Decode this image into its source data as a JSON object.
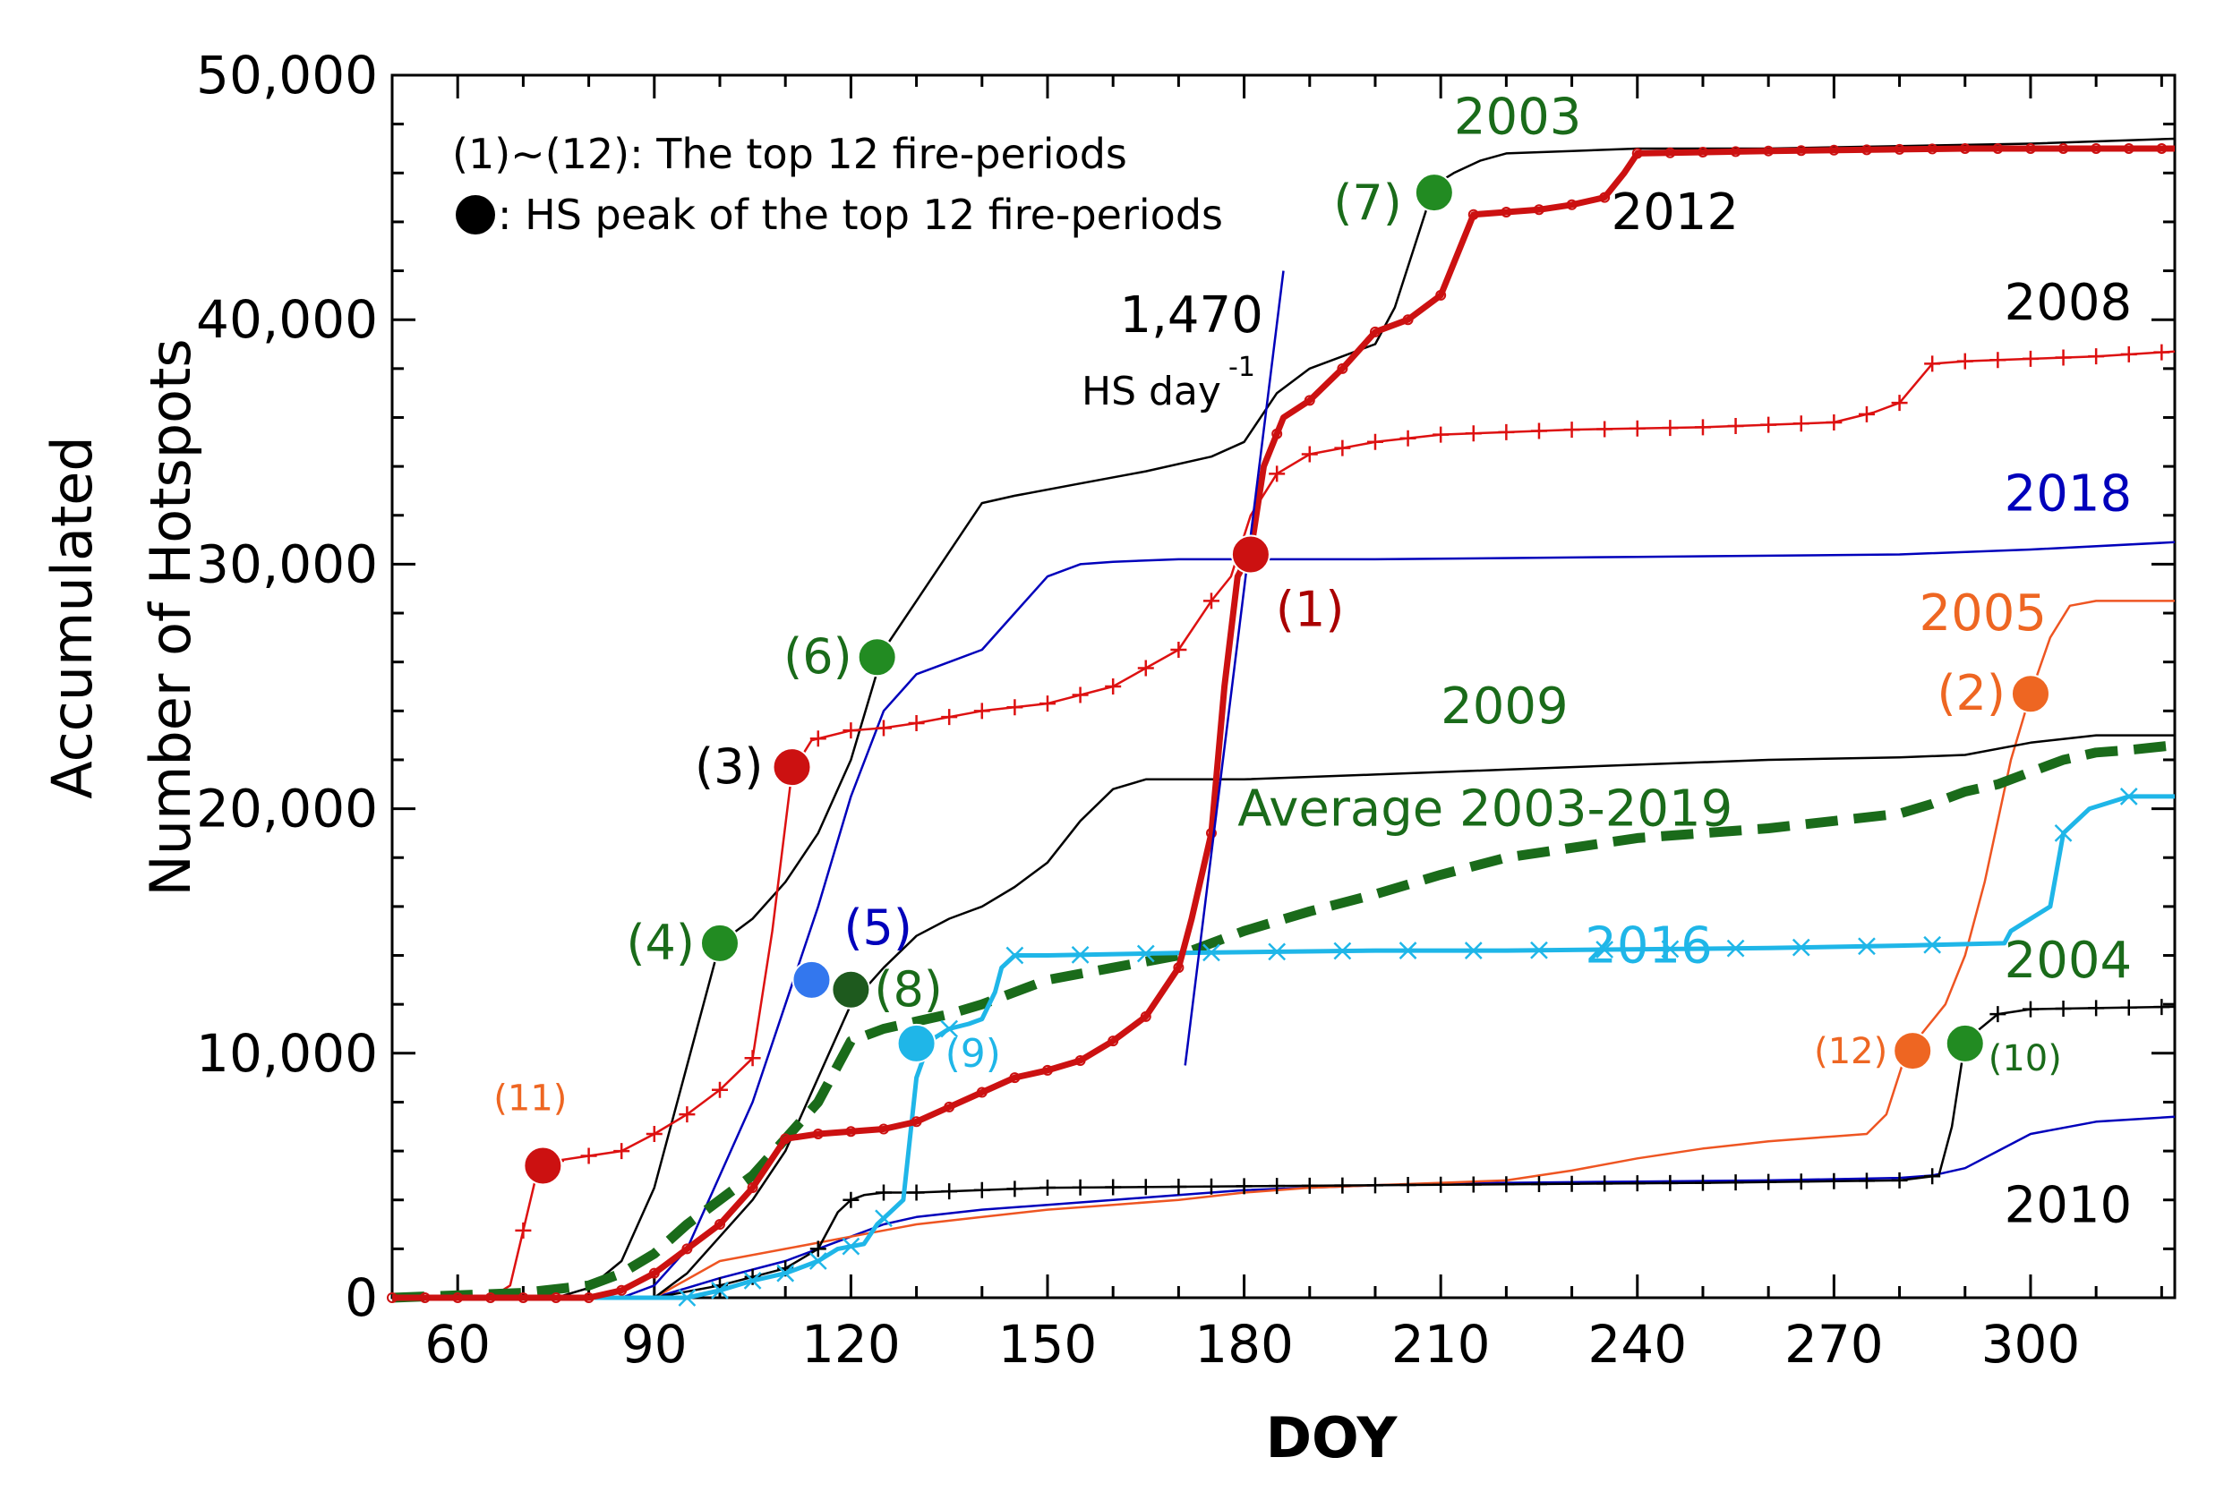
{
  "chart_data": {
    "type": "line",
    "xlabel": "DOY",
    "ylabel_line1": "Accumulated",
    "ylabel_line2": "Number of Hotspots",
    "xlim": [
      50,
      322
    ],
    "ylim": [
      0,
      50000
    ],
    "xticks": [
      60,
      90,
      120,
      150,
      180,
      210,
      240,
      270,
      300
    ],
    "xtick_labels": [
      "60",
      "90",
      "120",
      "150",
      "180",
      "210",
      "240",
      "270",
      "300"
    ],
    "yticks": [
      0,
      10000,
      20000,
      30000,
      40000,
      50000
    ],
    "ytick_labels": [
      "0",
      "10,000",
      "20,000",
      "30,000",
      "40,000",
      "50,000"
    ],
    "legend": {
      "line1": "(1)~(12): The top 12 fire-periods",
      "line2": ": HS peak of the top 12 fire-periods"
    },
    "series": [
      {
        "name": "2003",
        "color": "#000000",
        "width": 2.5,
        "marker": "none",
        "x": [
          50,
          75,
          80,
          85,
          90,
          95,
          100,
          105,
          110,
          115,
          120,
          125,
          130,
          135,
          140,
          145,
          155,
          165,
          175,
          180,
          185,
          190,
          200,
          203,
          206,
          209,
          212,
          216,
          220,
          230,
          240,
          260,
          280,
          300,
          322
        ],
        "y": [
          0,
          0,
          400,
          1500,
          4500,
          9500,
          14500,
          15500,
          17000,
          19000,
          22000,
          26500,
          28500,
          30500,
          32500,
          32800,
          33300,
          33800,
          34400,
          35000,
          37000,
          38000,
          39000,
          40500,
          43000,
          45500,
          46000,
          46500,
          46800,
          46900,
          47000,
          47000,
          47100,
          47200,
          47400
        ]
      },
      {
        "name": "2012",
        "color": "#cc1111",
        "width": 7,
        "marker": "circle",
        "x": [
          50,
          80,
          85,
          90,
          95,
          100,
          105,
          110,
          115,
          120,
          125,
          130,
          135,
          140,
          145,
          150,
          155,
          160,
          165,
          170,
          172,
          175,
          177,
          179,
          181,
          183,
          186,
          190,
          195,
          200,
          205,
          210,
          215,
          220,
          225,
          230,
          235,
          238,
          240,
          260,
          290,
          322
        ],
        "y": [
          0,
          0,
          300,
          1000,
          2000,
          3000,
          4500,
          6500,
          6700,
          6800,
          6900,
          7200,
          7800,
          8400,
          9000,
          9300,
          9700,
          10500,
          11500,
          13500,
          15500,
          19000,
          25000,
          29500,
          30500,
          34000,
          36000,
          36700,
          38000,
          39500,
          40000,
          41000,
          44300,
          44400,
          44500,
          44700,
          45000,
          46000,
          46800,
          46900,
          47000,
          47000
        ],
        "markers_x": [
          50,
          55,
          60,
          65,
          70,
          75,
          80,
          85,
          90,
          95,
          100,
          105,
          110,
          115,
          120,
          125,
          130,
          135,
          140,
          145,
          150,
          155,
          160,
          165,
          170,
          175,
          180,
          185,
          190,
          195,
          200,
          205,
          210,
          215,
          220,
          225,
          230,
          235,
          240,
          245,
          250,
          255,
          260,
          265,
          270,
          275,
          280,
          285,
          290,
          295,
          300,
          305,
          310,
          315,
          320
        ]
      },
      {
        "name": "2008",
        "color": "#dd1111",
        "width": 2.5,
        "marker": "plus",
        "x": [
          50,
          65,
          68,
          72,
          75,
          80,
          85,
          90,
          95,
          100,
          105,
          108,
          111,
          114,
          120,
          125,
          130,
          140,
          150,
          160,
          170,
          175,
          178,
          181,
          185,
          190,
          200,
          210,
          220,
          230,
          250,
          270,
          276,
          280,
          285,
          290,
          300,
          310,
          322
        ],
        "y": [
          0,
          0,
          500,
          5000,
          5600,
          5800,
          6000,
          6700,
          7500,
          8500,
          9800,
          15000,
          21500,
          22800,
          23200,
          23300,
          23500,
          24000,
          24300,
          25000,
          26500,
          28500,
          29500,
          32000,
          33700,
          34500,
          35000,
          35300,
          35400,
          35500,
          35600,
          35800,
          36200,
          36600,
          38200,
          38300,
          38400,
          38500,
          38700
        ],
        "markers_x": [
          70,
          75,
          80,
          85,
          90,
          95,
          100,
          105,
          115,
          120,
          125,
          130,
          135,
          140,
          145,
          150,
          155,
          160,
          165,
          170,
          175,
          185,
          190,
          195,
          200,
          205,
          210,
          215,
          220,
          225,
          230,
          235,
          240,
          245,
          250,
          255,
          260,
          265,
          270,
          275,
          280,
          285,
          290,
          295,
          300,
          305,
          310,
          315,
          320
        ]
      },
      {
        "name": "2018",
        "color": "#0000bb",
        "width": 2.5,
        "marker": "none",
        "x": [
          50,
          85,
          90,
          95,
          100,
          105,
          110,
          115,
          120,
          125,
          130,
          135,
          140,
          145,
          150,
          155,
          160,
          170,
          181,
          185,
          200,
          240,
          280,
          300,
          322
        ],
        "y": [
          0,
          0,
          500,
          2000,
          5000,
          8000,
          12000,
          16000,
          20500,
          24000,
          25500,
          26000,
          26500,
          28000,
          29500,
          30000,
          30100,
          30200,
          30200,
          30200,
          30200,
          30300,
          30400,
          30600,
          30900
        ]
      },
      {
        "name": "2005",
        "color": "#ee5522",
        "width": 2.5,
        "marker": "none",
        "x": [
          50,
          90,
          100,
          110,
          120,
          130,
          140,
          150,
          160,
          170,
          180,
          190,
          200,
          210,
          220,
          230,
          240,
          250,
          260,
          270,
          275,
          278,
          281,
          284,
          287,
          290,
          293,
          297,
          300,
          303,
          306,
          310,
          322
        ],
        "y": [
          0,
          0,
          1500,
          2000,
          2500,
          3000,
          3300,
          3600,
          3800,
          4000,
          4300,
          4500,
          4600,
          4700,
          4800,
          5200,
          5700,
          6100,
          6400,
          6600,
          6700,
          7500,
          10000,
          11000,
          12000,
          14000,
          17000,
          22000,
          24700,
          27000,
          28300,
          28500,
          28500
        ]
      },
      {
        "name": "2009",
        "color": "#000000",
        "width": 2.5,
        "marker": "none",
        "x": [
          50,
          90,
          95,
          100,
          105,
          110,
          115,
          120,
          125,
          130,
          135,
          140,
          145,
          150,
          155,
          160,
          165,
          180,
          200,
          220,
          240,
          260,
          280,
          290,
          300,
          310,
          322
        ],
        "y": [
          0,
          0,
          1000,
          2500,
          4000,
          6000,
          9000,
          12000,
          13500,
          14800,
          15500,
          16000,
          16800,
          17800,
          19500,
          20800,
          21200,
          21200,
          21400,
          21600,
          21800,
          22000,
          22100,
          22200,
          22700,
          23000,
          23000
        ]
      },
      {
        "name": "Average 2003-2019",
        "color": "#1a6b1a",
        "width": 11,
        "marker": "none",
        "dashed": true,
        "x": [
          50,
          70,
          80,
          85,
          90,
          95,
          100,
          105,
          110,
          115,
          120,
          125,
          130,
          135,
          140,
          145,
          150,
          160,
          170,
          175,
          180,
          190,
          200,
          210,
          220,
          230,
          240,
          250,
          260,
          270,
          280,
          285,
          290,
          295,
          300,
          305,
          310,
          315,
          322
        ],
        "y": [
          0,
          200,
          500,
          1000,
          1800,
          3000,
          4000,
          5000,
          6500,
          8000,
          10500,
          11000,
          11300,
          11600,
          12000,
          12500,
          13000,
          13500,
          14000,
          14500,
          15000,
          15800,
          16500,
          17300,
          18000,
          18400,
          18800,
          19000,
          19200,
          19500,
          19800,
          20200,
          20700,
          21000,
          21500,
          22000,
          22300,
          22400,
          22600
        ]
      },
      {
        "name": "2016",
        "color": "#1fb6e8",
        "width": 5,
        "marker": "x",
        "x": [
          50,
          95,
          100,
          105,
          110,
          115,
          118,
          122,
          124,
          126,
          128,
          130,
          132,
          135,
          138,
          140,
          142,
          143,
          145,
          150,
          170,
          200,
          220,
          260,
          280,
          296,
          297,
          300,
          303,
          305,
          309,
          315,
          322
        ],
        "y": [
          0,
          0,
          300,
          700,
          1000,
          1500,
          2000,
          2200,
          3000,
          3500,
          4000,
          9000,
          10500,
          11000,
          11200,
          11400,
          12500,
          13500,
          14000,
          14000,
          14100,
          14200,
          14200,
          14300,
          14400,
          14500,
          15000,
          15500,
          16000,
          19000,
          20000,
          20500,
          20500
        ],
        "markers_x": [
          95,
          100,
          105,
          110,
          115,
          120,
          125,
          135,
          145,
          155,
          165,
          175,
          185,
          195,
          205,
          215,
          225,
          235,
          245,
          255,
          265,
          275,
          285,
          305,
          315
        ]
      },
      {
        "name": "2004",
        "color": "#000000",
        "width": 2.5,
        "marker": "plus",
        "x": [
          50,
          90,
          100,
          110,
          115,
          118,
          120,
          122,
          125,
          130,
          140,
          150,
          200,
          250,
          280,
          286,
          288,
          290,
          295,
          300,
          322
        ],
        "y": [
          0,
          0,
          500,
          1200,
          2000,
          3500,
          4000,
          4200,
          4300,
          4300,
          4400,
          4500,
          4600,
          4700,
          4800,
          5000,
          7000,
          10500,
          11600,
          11800,
          11900
        ],
        "markers_x": [
          100,
          105,
          110,
          115,
          120,
          125,
          130,
          135,
          140,
          145,
          150,
          155,
          160,
          165,
          170,
          175,
          180,
          185,
          190,
          195,
          200,
          205,
          210,
          215,
          220,
          225,
          230,
          235,
          240,
          245,
          250,
          255,
          260,
          265,
          270,
          275,
          280,
          285,
          295,
          300,
          305,
          310,
          315,
          320
        ]
      },
      {
        "name": "2010",
        "color": "#0000bb",
        "width": 2.5,
        "marker": "none",
        "x": [
          50,
          90,
          100,
          110,
          120,
          125,
          130,
          140,
          150,
          160,
          170,
          180,
          200,
          220,
          240,
          260,
          280,
          285,
          290,
          295,
          300,
          310,
          322
        ],
        "y": [
          0,
          0,
          800,
          1500,
          2500,
          3000,
          3300,
          3600,
          3800,
          4000,
          4200,
          4400,
          4600,
          4700,
          4750,
          4800,
          4900,
          5000,
          5300,
          6000,
          6700,
          7200,
          7400
        ]
      }
    ],
    "fit_line": {
      "color": "#0000bb",
      "x": [
        171,
        186
      ],
      "y": [
        9500,
        42000
      ]
    },
    "peaks": [
      {
        "label": "(1)",
        "x": 181,
        "y": 30400,
        "color": "#cc1111",
        "label_color": "#aa0000"
      },
      {
        "label": "(2)",
        "x": 300,
        "y": 24700,
        "color": "#ee6622",
        "label_color": "#ee6622"
      },
      {
        "label": "(3)",
        "x": 111,
        "y": 21700,
        "color": "#cc1111",
        "label_color": "#000000"
      },
      {
        "label": "(4)",
        "x": 100,
        "y": 14500,
        "color": "#228b22",
        "label_color": "#1a6b1a"
      },
      {
        "label": "(5)",
        "x": 114,
        "y": 13000,
        "color": "#3377ee",
        "label_color": "#0000bb"
      },
      {
        "label": "(6)",
        "x": 124,
        "y": 26200,
        "color": "#228b22",
        "label_color": "#1a6b1a"
      },
      {
        "label": "(7)",
        "x": 209,
        "y": 45200,
        "color": "#228b22",
        "label_color": "#1a6b1a"
      },
      {
        "label": "(8)",
        "x": 120,
        "y": 12600,
        "color": "#1e5a1e",
        "label_color": "#1a6b1a"
      },
      {
        "label": "(9)",
        "x": 130,
        "y": 10400,
        "color": "#1fb6e8",
        "label_color": "#1fb6e8"
      },
      {
        "label": "(10)",
        "x": 290,
        "y": 10400,
        "color": "#228b22",
        "label_color": "#1a6b1a"
      },
      {
        "label": "(11)",
        "x": 73,
        "y": 5400,
        "color": "#cc1111",
        "label_color": "#ee6622"
      },
      {
        "label": "(12)",
        "x": 282,
        "y": 10100,
        "color": "#ee6622",
        "label_color": "#ee6622"
      }
    ],
    "series_labels": [
      {
        "text": "2003",
        "color": "#1a6b1a",
        "anchor": "start",
        "x": 212,
        "y": 47600
      },
      {
        "text": "2012",
        "color": "#000000",
        "anchor": "start",
        "x": 236,
        "y": 43700
      },
      {
        "text": "2008",
        "color": "#000000",
        "anchor": "start",
        "x": 296,
        "y": 40000
      },
      {
        "text": "2018",
        "color": "#0000bb",
        "anchor": "start",
        "x": 296,
        "y": 32200
      },
      {
        "text": "2005",
        "color": "#ee6622",
        "anchor": "start",
        "x": 283,
        "y": 27300
      },
      {
        "text": "2009",
        "color": "#1a6b1a",
        "anchor": "start",
        "x": 210,
        "y": 23500
      },
      {
        "text": "Average 2003-2019",
        "color": "#1a6b1a",
        "anchor": "start",
        "x": 179,
        "y": 19300
      },
      {
        "text": "2016",
        "color": "#1fb6e8",
        "anchor": "start",
        "x": 232,
        "y": 13700
      },
      {
        "text": "2004",
        "color": "#1a6b1a",
        "anchor": "start",
        "x": 296,
        "y": 13100
      },
      {
        "text": "2010",
        "color": "#000000",
        "anchor": "start",
        "x": 296,
        "y": 3100
      },
      {
        "text": "1,470",
        "color": "#000000",
        "anchor": "start",
        "x": 161,
        "y": 39500
      }
    ],
    "fit_label_unit": "HS day",
    "fit_label_sup": "-1"
  }
}
